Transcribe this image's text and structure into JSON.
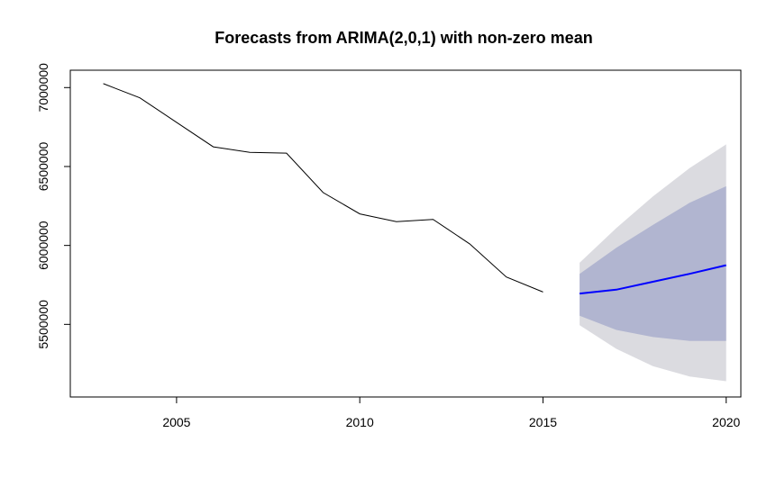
{
  "chart_data": {
    "type": "line",
    "title": "Forecasts from ARIMA(2,0,1) with non-zero mean",
    "xlabel": "",
    "ylabel": "",
    "xlim": [
      2002.1,
      2020.4
    ],
    "ylim": [
      5040000,
      7110000
    ],
    "x_ticks": [
      2005,
      2010,
      2015,
      2020
    ],
    "x_tick_labels": [
      "2005",
      "2010",
      "2015",
      "2020"
    ],
    "y_ticks": [
      5500000,
      6000000,
      6500000,
      7000000
    ],
    "y_tick_labels": [
      "5500000",
      "6000000",
      "6500000",
      "7000000"
    ],
    "grid": false,
    "legend": "none",
    "series": [
      {
        "role": "observed",
        "color": "#000000",
        "x": [
          2003,
          2004,
          2005,
          2006,
          2007,
          2008,
          2009,
          2010,
          2011,
          2012,
          2013,
          2014,
          2015
        ],
        "values": [
          7025000,
          6935000,
          6780000,
          6625000,
          6590000,
          6585000,
          6335000,
          6200000,
          6150000,
          6165000,
          6010000,
          5800000,
          5705000
        ]
      },
      {
        "role": "forecast-mean",
        "color": "#0000ff",
        "x": [
          2016,
          2017,
          2018,
          2019,
          2020
        ],
        "values": [
          5695000,
          5720000,
          5770000,
          5820000,
          5875000
        ]
      },
      {
        "role": "interval-95",
        "color": "#dbdbe0",
        "x": [
          2016,
          2017,
          2018,
          2019,
          2020
        ],
        "lower": [
          5495000,
          5345000,
          5235000,
          5170000,
          5140000
        ],
        "upper": [
          5890000,
          6110000,
          6310000,
          6490000,
          6640000
        ]
      },
      {
        "role": "interval-80",
        "color": "#b1b5d0",
        "x": [
          2016,
          2017,
          2018,
          2019,
          2020
        ],
        "lower": [
          5555000,
          5465000,
          5420000,
          5395000,
          5395000
        ],
        "upper": [
          5820000,
          5985000,
          6130000,
          6270000,
          6375000
        ]
      }
    ]
  }
}
